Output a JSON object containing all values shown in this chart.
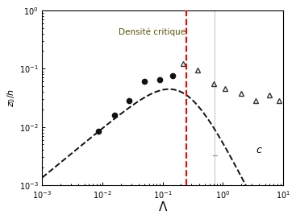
{
  "title": "",
  "xlabel": "Λ",
  "ylabel": "$z_0/h$",
  "xlim": [
    0.001,
    10
  ],
  "ylim": [
    0.001,
    1
  ],
  "vline_x": 0.25,
  "vline_label": "Densité critique",
  "annotation_c": "c",
  "filled_circles": {
    "x": [
      0.0085,
      0.016,
      0.028,
      0.05,
      0.09,
      0.145
    ],
    "y": [
      0.0085,
      0.016,
      0.028,
      0.06,
      0.065,
      0.075
    ]
  },
  "open_triangles": {
    "x": [
      0.22,
      0.38,
      0.7,
      1.1,
      2.0,
      3.5,
      6.0,
      8.5
    ],
    "y": [
      0.12,
      0.095,
      0.055,
      0.045,
      0.038,
      0.028,
      0.035,
      0.028
    ]
  },
  "curve_color": "#111111",
  "dot_color": "#111111",
  "triangle_color": "#333333",
  "background_color": "#ffffff",
  "small_line_x": [
    0.68,
    0.8
  ],
  "small_line_y": [
    0.0032,
    0.0032
  ],
  "curve_params": {
    "A": 0.48,
    "x0": 0.22,
    "a": 0.85,
    "b": 1.6,
    "c": 1.8
  }
}
